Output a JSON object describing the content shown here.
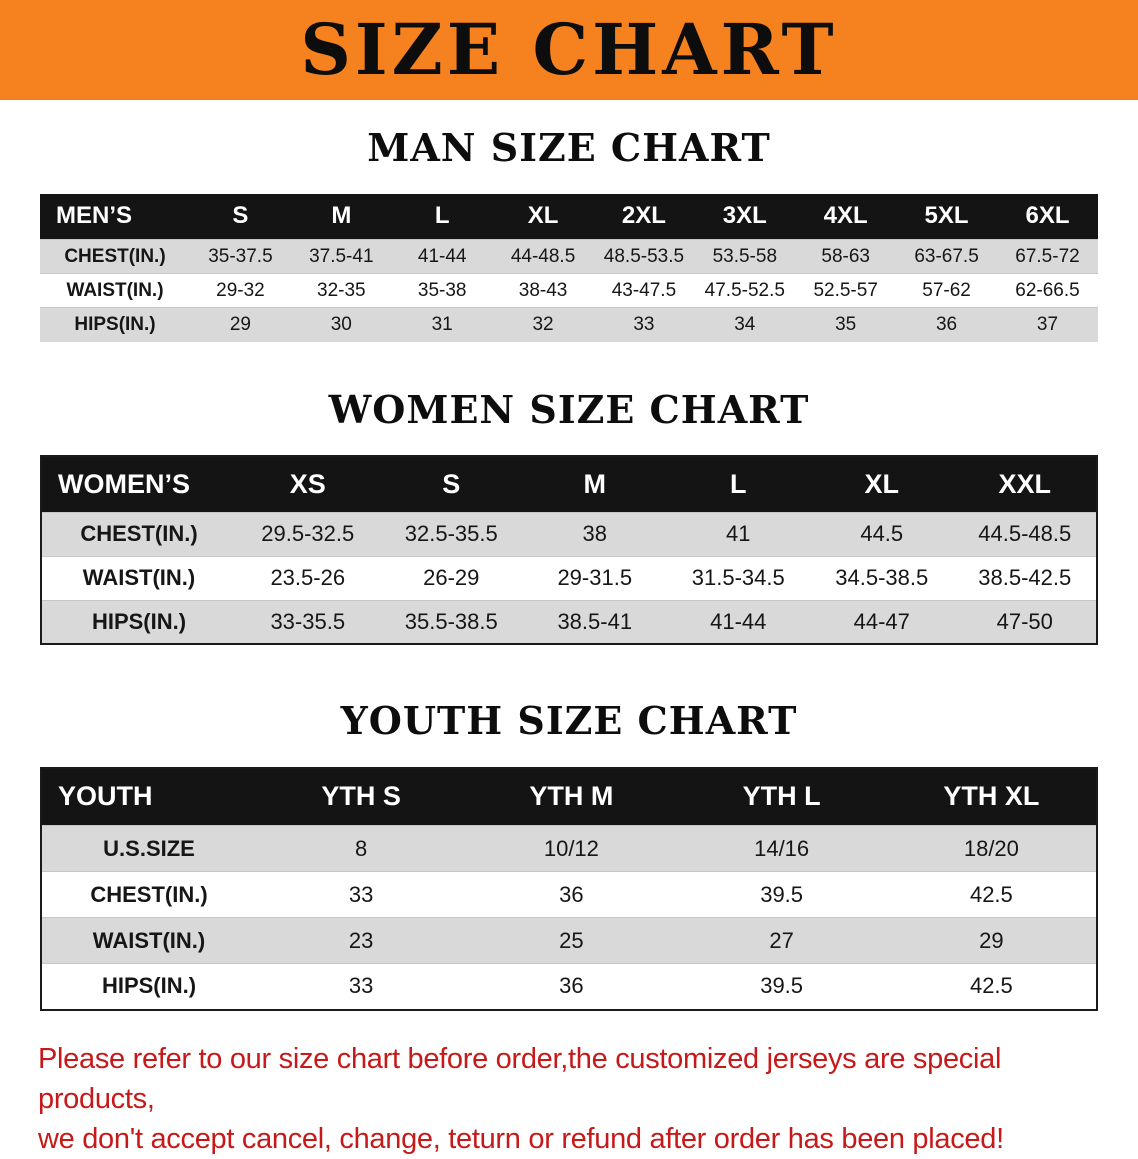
{
  "banner": {
    "title": "SIZE CHART"
  },
  "men": {
    "heading": "MAN SIZE CHART",
    "table": {
      "header": [
        "MEN’S",
        "S",
        "M",
        "L",
        "XL",
        "2XL",
        "3XL",
        "4XL",
        "5XL",
        "6XL"
      ],
      "rows": [
        [
          "CHEST(IN.)",
          "35-37.5",
          "37.5-41",
          "41-44",
          "44-48.5",
          "48.5-53.5",
          "53.5-58",
          "58-63",
          "63-67.5",
          "67.5-72"
        ],
        [
          "WAIST(IN.)",
          "29-32",
          "32-35",
          "35-38",
          "38-43",
          "43-47.5",
          "47.5-52.5",
          "52.5-57",
          "57-62",
          "62-66.5"
        ],
        [
          "HIPS(IN.)",
          "29",
          "30",
          "31",
          "32",
          "33",
          "34",
          "35",
          "36",
          "37"
        ]
      ]
    }
  },
  "women": {
    "heading": "WOMEN SIZE CHART",
    "table": {
      "header": [
        "WOMEN’S",
        "XS",
        "S",
        "M",
        "L",
        "XL",
        "XXL"
      ],
      "rows": [
        [
          "CHEST(IN.)",
          "29.5-32.5",
          "32.5-35.5",
          "38",
          "41",
          "44.5",
          "44.5-48.5"
        ],
        [
          "WAIST(IN.)",
          "23.5-26",
          "26-29",
          "29-31.5",
          "31.5-34.5",
          "34.5-38.5",
          "38.5-42.5"
        ],
        [
          "HIPS(IN.)",
          "33-35.5",
          "35.5-38.5",
          "38.5-41",
          "41-44",
          "44-47",
          "47-50"
        ]
      ]
    }
  },
  "youth": {
    "heading": "YOUTH SIZE CHART",
    "table": {
      "header": [
        "YOUTH",
        "YTH S",
        "YTH M",
        "YTH L",
        "YTH XL"
      ],
      "rows": [
        [
          "U.S.SIZE",
          "8",
          "10/12",
          "14/16",
          "18/20"
        ],
        [
          "CHEST(IN.)",
          "33",
          "36",
          "39.5",
          "42.5"
        ],
        [
          "WAIST(IN.)",
          "23",
          "25",
          "27",
          "29"
        ],
        [
          "HIPS(IN.)",
          "33",
          "36",
          "39.5",
          "42.5"
        ]
      ]
    }
  },
  "disclaimer": {
    "line1": "Please refer to our size chart before order,the customized jerseys are special products,",
    "line2": "we don't accept cancel, change, teturn or refund after order has been placed!"
  },
  "colors": {
    "banner_bg": "#F5821F",
    "table_header_bg": "#141414",
    "row_stripe_bg": "#D9D9D9",
    "disclaimer_text": "#C61A1A"
  }
}
